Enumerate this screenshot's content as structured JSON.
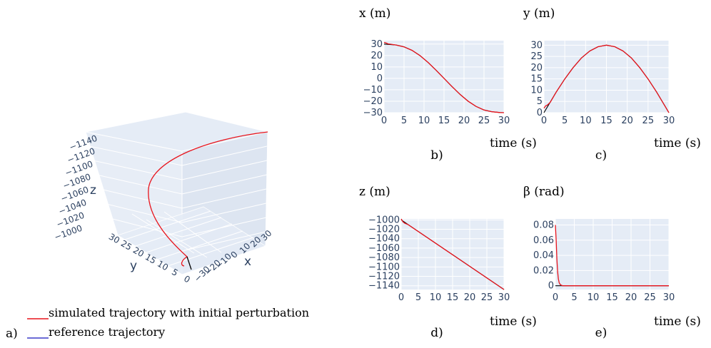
{
  "colors": {
    "simulated": "#e8141c",
    "reference": "#3b3bc8",
    "overlay": "#000000",
    "plot_bg": "#e5ecf6",
    "grid": "#ffffff",
    "tick_text": "#2a3f5f"
  },
  "legend": {
    "panel_label": "a)",
    "items": [
      {
        "label": "simulated trajectory with initial perturbation",
        "color": "#e8141c"
      },
      {
        "label": "reference trajectory",
        "color": "#3b3bc8"
      }
    ]
  },
  "scene3d": {
    "z_ticks": [
      "−1140",
      "−1120",
      "−1100",
      "−1080",
      "−1060",
      "−1040",
      "−1020",
      "−1000"
    ],
    "z_label": "z",
    "y_ticks": [
      "30",
      "25",
      "20",
      "15",
      "10",
      "5",
      "0"
    ],
    "y_label": "y",
    "x_ticks": [
      "30",
      "20",
      "10",
      "0",
      "−10",
      "−20",
      "−30"
    ],
    "x_label": "x"
  },
  "chart_data": [
    {
      "id": "b",
      "type": "line",
      "panel_label": "b)",
      "title": "x (m)",
      "xlabel": "time (s)",
      "xlim": [
        0,
        30
      ],
      "ylim": [
        -30,
        33
      ],
      "x_ticks": [
        0,
        5,
        10,
        15,
        20,
        25,
        30
      ],
      "y_ticks": [
        30,
        20,
        10,
        0,
        -10,
        -20,
        -30
      ],
      "y_tick_labels": [
        "30",
        "20",
        "10",
        "0",
        "−10",
        "−20",
        "−30"
      ],
      "series": [
        {
          "name": "simulated trajectory with initial perturbation",
          "x": [
            0,
            0.5,
            1,
            3,
            5,
            7,
            9,
            11,
            13,
            15,
            17,
            19,
            21,
            23,
            25,
            27,
            29,
            30
          ],
          "y": [
            31.5,
            31,
            30.2,
            29.2,
            27.6,
            24.5,
            19.9,
            14.0,
            7.2,
            0,
            -7.2,
            -14.0,
            -19.9,
            -24.5,
            -27.6,
            -29.2,
            -29.9,
            -30.0
          ]
        },
        {
          "name": "reference trajectory",
          "x": [
            0,
            3,
            5,
            7,
            9,
            11,
            13,
            15,
            17,
            19,
            21,
            23,
            25,
            27,
            29,
            30
          ],
          "y": [
            30,
            29.2,
            27.6,
            24.5,
            19.9,
            14.0,
            7.2,
            0,
            -7.2,
            -14.0,
            -19.9,
            -24.5,
            -27.6,
            -29.2,
            -29.9,
            -30.0
          ]
        }
      ]
    },
    {
      "id": "c",
      "type": "line",
      "panel_label": "c)",
      "title": "y (m)",
      "xlabel": "time (s)",
      "xlim": [
        0,
        30
      ],
      "ylim": [
        0,
        32
      ],
      "x_ticks": [
        0,
        5,
        10,
        15,
        20,
        25,
        30
      ],
      "y_ticks": [
        30,
        25,
        20,
        15,
        10,
        5,
        0
      ],
      "y_tick_labels": [
        "30",
        "25",
        "20",
        "15",
        "10",
        "5",
        "0"
      ],
      "series": [
        {
          "name": "simulated trajectory with initial perturbation",
          "x": [
            0,
            0.4,
            0.8,
            1.5,
            3,
            5,
            7,
            9,
            11,
            13,
            15,
            17,
            19,
            21,
            23,
            25,
            27,
            29,
            30
          ],
          "y": [
            2.0,
            3.0,
            3.4,
            4.6,
            9.3,
            15.0,
            20.0,
            24.3,
            27.4,
            29.3,
            30.0,
            29.3,
            27.4,
            24.3,
            20.0,
            15.0,
            9.3,
            3.1,
            0
          ]
        },
        {
          "name": "reference trajectory",
          "x": [
            0,
            1,
            3,
            5,
            7,
            9,
            11,
            13,
            15,
            17,
            19,
            21,
            23,
            25,
            27,
            29,
            30
          ],
          "y": [
            0,
            3.1,
            9.3,
            15.0,
            20.0,
            24.3,
            27.4,
            29.3,
            30.0,
            29.3,
            27.4,
            24.3,
            20.0,
            15.0,
            9.3,
            3.1,
            0
          ]
        }
      ]
    },
    {
      "id": "d",
      "type": "line",
      "panel_label": "d)",
      "title": "z (m)",
      "xlabel": "time (s)",
      "xlim": [
        0,
        30
      ],
      "ylim": [
        -1148,
        -998
      ],
      "x_ticks": [
        0,
        5,
        10,
        15,
        20,
        25,
        30
      ],
      "y_ticks": [
        -1000,
        -1020,
        -1040,
        -1060,
        -1080,
        -1100,
        -1120,
        -1140
      ],
      "y_tick_labels": [
        "−1000",
        "−1020",
        "−1040",
        "−1060",
        "−1080",
        "−1100",
        "−1120",
        "−1140"
      ],
      "series": [
        {
          "name": "simulated trajectory with initial perturbation",
          "x": [
            0,
            0.5,
            1,
            2,
            30
          ],
          "y": [
            -998,
            -1004,
            -1007,
            -1010,
            -1148
          ]
        },
        {
          "name": "reference trajectory",
          "x": [
            0,
            30
          ],
          "y": [
            -1000,
            -1148
          ]
        }
      ]
    },
    {
      "id": "e",
      "type": "line",
      "panel_label": "e)",
      "title": "β (rad)",
      "xlabel": "time (s)",
      "xlim": [
        0,
        30
      ],
      "ylim": [
        -0.005,
        0.088
      ],
      "x_ticks": [
        0,
        5,
        10,
        15,
        20,
        25,
        30
      ],
      "y_ticks": [
        0.08,
        0.06,
        0.04,
        0.02,
        0
      ],
      "y_tick_labels": [
        "0.08",
        "0.06",
        "0.04",
        "0.02",
        "0"
      ],
      "series": [
        {
          "name": "simulated trajectory with initial perturbation",
          "x": [
            0,
            0.2,
            0.4,
            0.6,
            0.8,
            1.0,
            1.3,
            1.6,
            2.0,
            3,
            30
          ],
          "y": [
            0.08,
            0.06,
            0.035,
            0.018,
            0.009,
            0.004,
            0.0015,
            0.0005,
            0,
            0,
            0
          ]
        },
        {
          "name": "reference trajectory",
          "x": [
            0,
            30
          ],
          "y": [
            0,
            0
          ]
        }
      ]
    }
  ]
}
